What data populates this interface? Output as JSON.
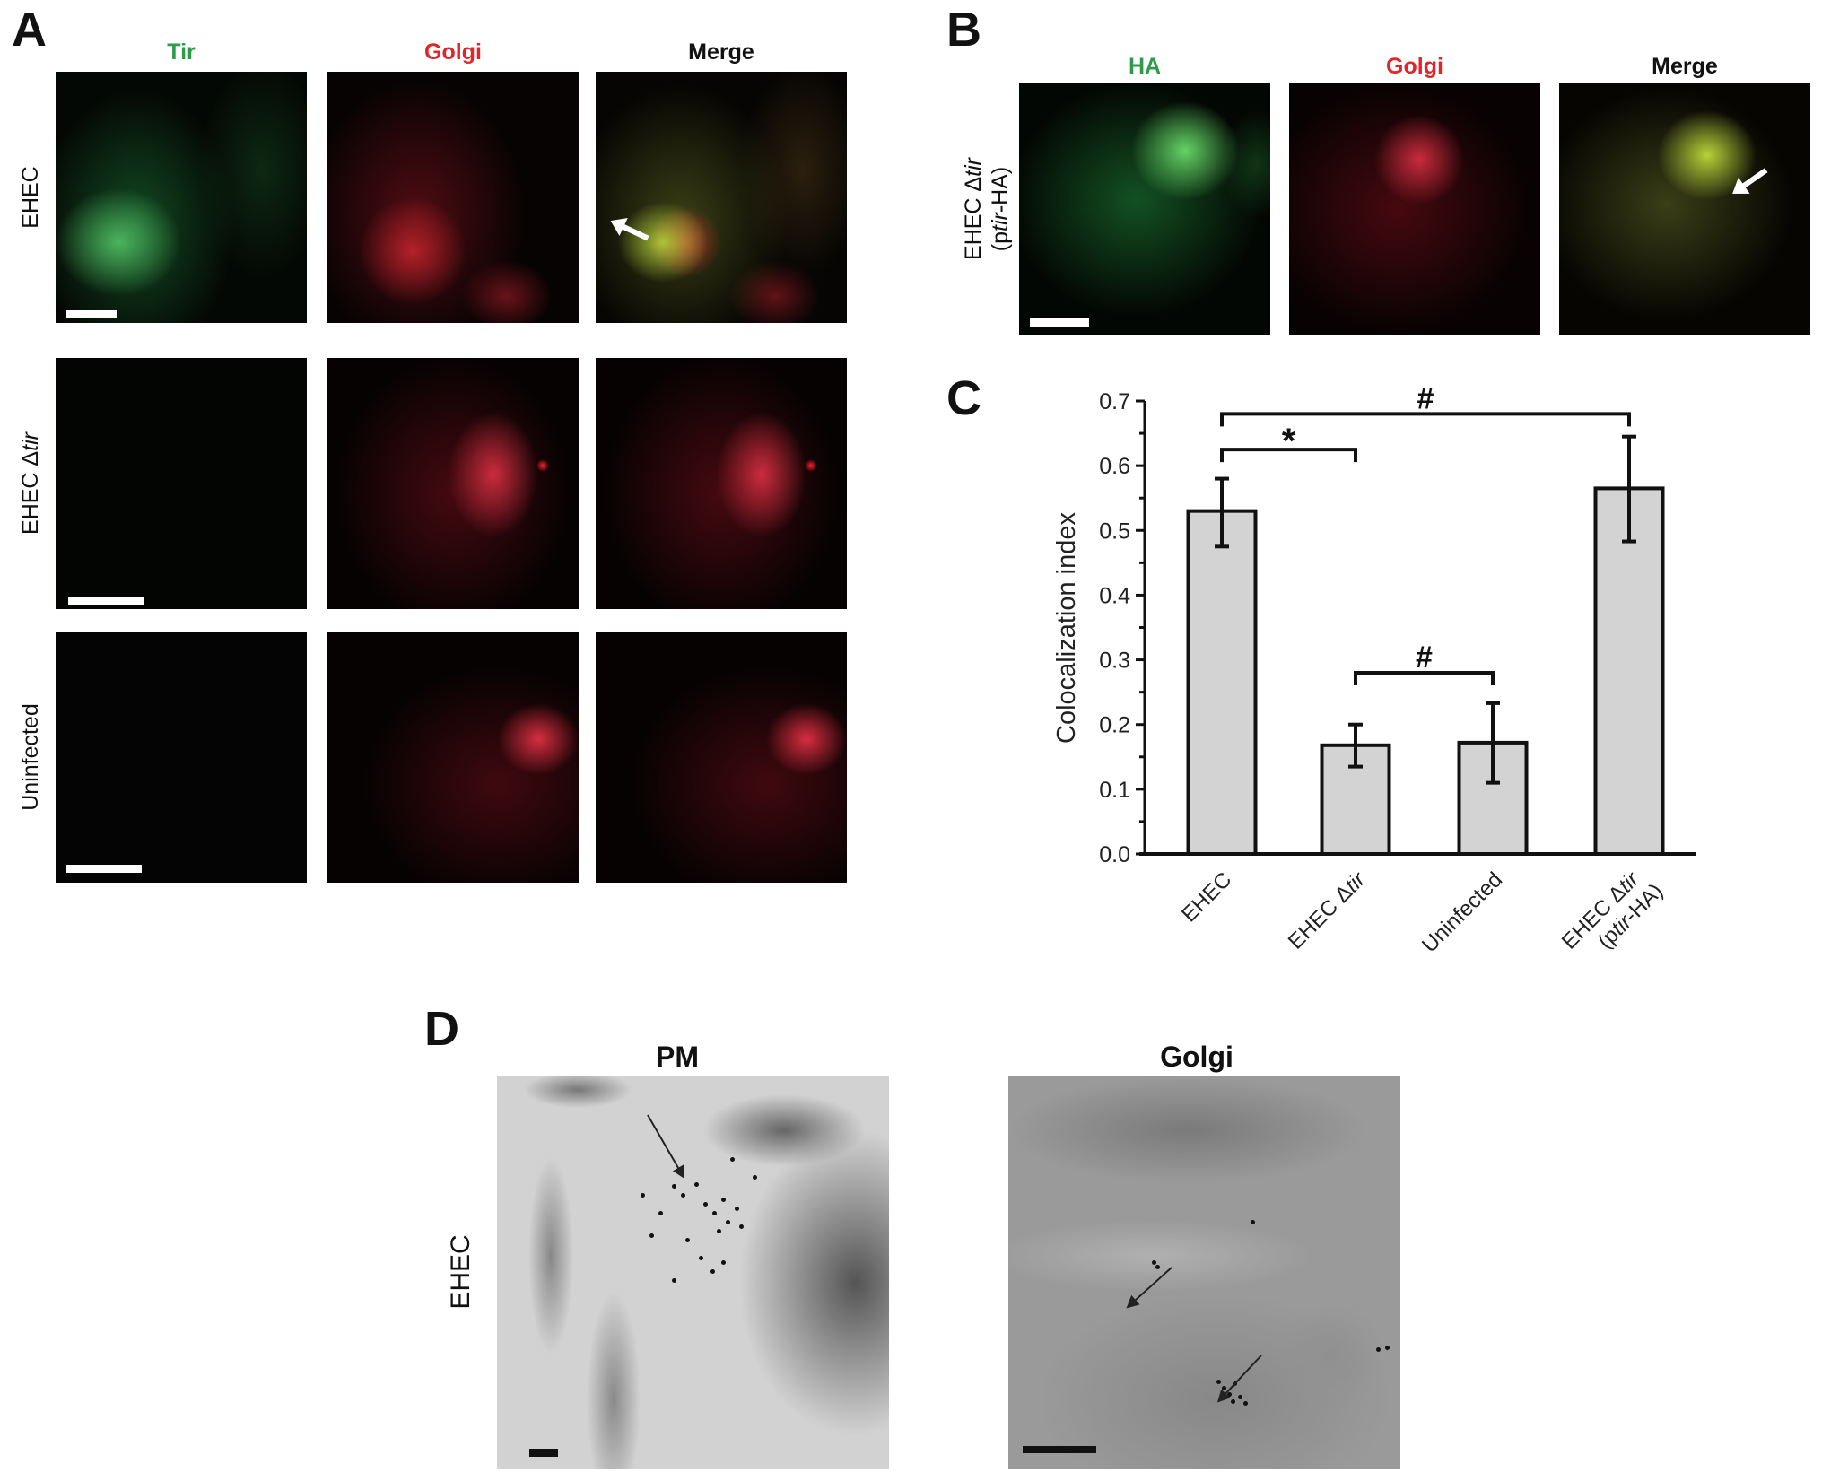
{
  "panel_a": {
    "label": "A",
    "columns": [
      {
        "text": "Tir",
        "color": "#2e9a4a"
      },
      {
        "text": "Golgi",
        "color": "#e0262b"
      },
      {
        "text": "Merge",
        "color": "#111111"
      }
    ],
    "rows": [
      {
        "prefix": "EHEC",
        "italic": ""
      },
      {
        "prefix": "EHEC Δ",
        "italic": "tir"
      },
      {
        "prefix": "Uninfected",
        "italic": ""
      }
    ]
  },
  "panel_b": {
    "label": "B",
    "columns": [
      {
        "text": "HA",
        "color": "#2e9a4a"
      },
      {
        "text": "Golgi",
        "color": "#e0262b"
      },
      {
        "text": "Merge",
        "color": "#111111"
      }
    ],
    "row": {
      "line1_prefix": "EHEC Δ",
      "line1_italic": "tir",
      "line2_open": "(p",
      "line2_italic": "tir",
      "line2_close": "-HA)"
    }
  },
  "panel_c": {
    "label": "C"
  },
  "chart_data": {
    "type": "bar",
    "categories": [
      "EHEC",
      "EHEC Δtir",
      "Uninfected",
      "EHEC Δtir (ptir-HA)"
    ],
    "category_parts": [
      {
        "prefix": "EHEC",
        "italic": "",
        "line2_open": "",
        "line2_italic": "",
        "line2_close": ""
      },
      {
        "prefix": "EHEC Δ",
        "italic": "tir",
        "line2_open": "",
        "line2_italic": "",
        "line2_close": ""
      },
      {
        "prefix": "Uninfected",
        "italic": "",
        "line2_open": "",
        "line2_italic": "",
        "line2_close": ""
      },
      {
        "prefix": "EHEC Δ",
        "italic": "tir",
        "line2_open": "(p",
        "line2_italic": "tir",
        "line2_close": "-HA)"
      }
    ],
    "values": [
      0.53,
      0.168,
      0.172,
      0.565
    ],
    "error_low": [
      0.475,
      0.135,
      0.11,
      0.483
    ],
    "error_high": [
      0.58,
      0.2,
      0.233,
      0.645
    ],
    "ylabel": "Colocalization index",
    "xlabel": "",
    "ylim": [
      0,
      0.7
    ],
    "yticks": [
      "0.0",
      "0.1",
      "0.2",
      "0.3",
      "0.4",
      "0.5",
      "0.6",
      "0.7"
    ],
    "bar_color": "#d3d3d3",
    "grid": false,
    "significance": [
      {
        "from": 0,
        "to": 3,
        "symbol": "#",
        "level": 0.68
      },
      {
        "from": 0,
        "to": 1,
        "symbol": "*",
        "level": 0.625
      },
      {
        "from": 1,
        "to": 2,
        "symbol": "#",
        "level": 0.28
      }
    ]
  },
  "panel_d": {
    "label": "D",
    "columns": [
      "PM",
      "Golgi"
    ],
    "row": "EHEC"
  }
}
